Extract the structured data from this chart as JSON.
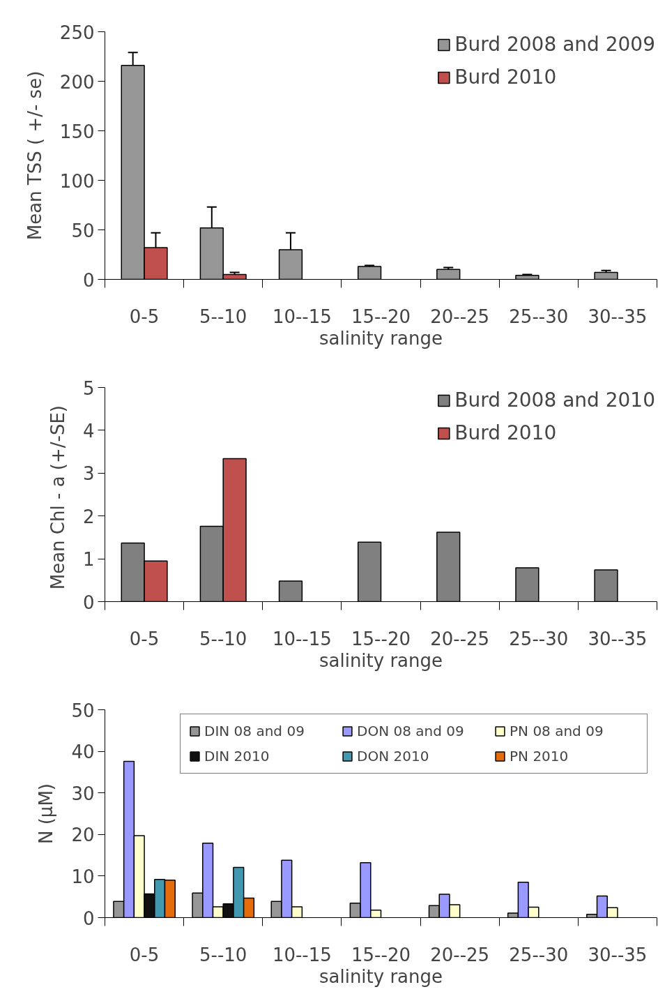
{
  "chart_data": [
    {
      "type": "bar",
      "xlabel": "salinity range",
      "ylabel": "Mean TSS ( +/- se)",
      "categories": [
        "0-5",
        "5--10",
        "10--15",
        "15--20",
        "20--25",
        "25--30",
        "30--35"
      ],
      "ylim": [
        0,
        250
      ],
      "yticks": [
        0,
        50,
        100,
        150,
        200,
        250
      ],
      "grid": false,
      "legend": "top right",
      "series": [
        {
          "name": "Burd 2008 and 2009",
          "color": "#969696",
          "values": [
            216,
            52,
            30,
            13,
            10,
            4,
            7
          ],
          "errors": [
            [
              216,
              229
            ],
            [
              52,
              73
            ],
            [
              30,
              47
            ],
            [
              13,
              14
            ],
            [
              10,
              12
            ],
            [
              4,
              5
            ],
            [
              7,
              9
            ]
          ]
        },
        {
          "name": "Burd 2010",
          "color": "#c0504d",
          "values": [
            32,
            5,
            null,
            null,
            null,
            null,
            null
          ],
          "errors": [
            [
              32,
              47
            ],
            [
              5,
              7
            ],
            null,
            null,
            null,
            null,
            null
          ]
        }
      ]
    },
    {
      "type": "bar",
      "xlabel": "salinity range",
      "ylabel": "Mean Chl - a  (+/-SE)",
      "categories": [
        "0-5",
        "5--10",
        "10--15",
        "15--20",
        "20--25",
        "25--30",
        "30--35"
      ],
      "ylim": [
        0,
        5
      ],
      "yticks": [
        0,
        1,
        2,
        3,
        4,
        5
      ],
      "grid": false,
      "legend": "top right",
      "series": [
        {
          "name": "Burd 2008 and 2010",
          "color": "#808080",
          "values": [
            1.37,
            1.76,
            0.48,
            1.39,
            1.62,
            0.79,
            0.74
          ]
        },
        {
          "name": "Burd 2010",
          "color": "#c0504d",
          "values": [
            0.95,
            3.34,
            null,
            null,
            null,
            null,
            null
          ]
        }
      ]
    },
    {
      "type": "bar",
      "xlabel": "salinity range",
      "ylabel": "N (µM)",
      "categories": [
        "0-5",
        "5--10",
        "10--15",
        "15--20",
        "20--25",
        "25--30",
        "30--35"
      ],
      "ylim": [
        0,
        50
      ],
      "yticks": [
        0,
        10,
        20,
        30,
        40,
        50
      ],
      "grid": false,
      "legend": "top right",
      "series": [
        {
          "name": "DIN 08 and 09",
          "color": "#969696",
          "values": [
            3.9,
            5.9,
            3.9,
            3.5,
            2.9,
            1.1,
            0.8
          ]
        },
        {
          "name": "DON 08 and 09",
          "color": "#9999ff",
          "values": [
            37.6,
            17.9,
            13.8,
            13.2,
            5.6,
            8.5,
            5.2
          ]
        },
        {
          "name": "PN 08 and 09",
          "color": "#ffffcc",
          "values": [
            19.7,
            2.6,
            2.6,
            1.8,
            3.1,
            2.5,
            2.4
          ]
        },
        {
          "name": "DIN 2010",
          "color": "#111111",
          "values": [
            5.7,
            3.3,
            null,
            null,
            null,
            null,
            null
          ]
        },
        {
          "name": "DON 2010",
          "color": "#4198af",
          "values": [
            9.2,
            12.1,
            null,
            null,
            null,
            null,
            null
          ]
        },
        {
          "name": "PN 2010",
          "color": "#e46c0a",
          "values": [
            9.0,
            4.7,
            null,
            null,
            null,
            null,
            null
          ]
        }
      ]
    }
  ]
}
